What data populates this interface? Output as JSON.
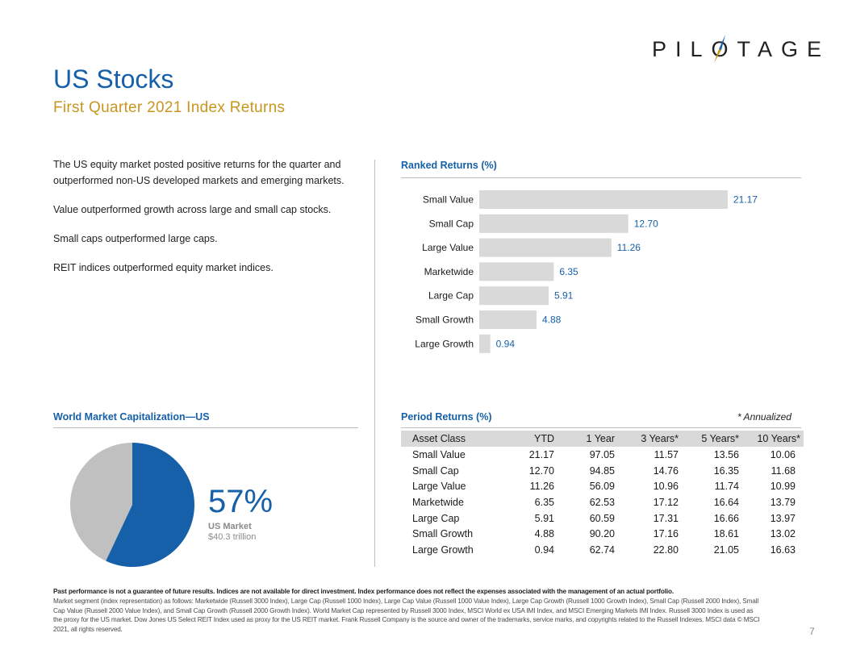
{
  "logo": {
    "text_before": "PIL",
    "o": "O",
    "text_after": "TAGE"
  },
  "title": "US Stocks",
  "subtitle": "First Quarter 2021 Index Returns",
  "bullets": [
    "The US equity market posted positive returns for the quarter and outperformed non-US developed markets and emerging markets.",
    "Value outperformed growth across large and small cap stocks.",
    "Small caps outperformed large caps.",
    "REIT indices outperformed equity market indices."
  ],
  "ranked_title": "Ranked Returns (%)",
  "chart_data": {
    "type": "bar",
    "orientation": "horizontal",
    "title": "Ranked Returns (%)",
    "categories": [
      "Small Value",
      "Small Cap",
      "Large Value",
      "Marketwide",
      "Large Cap",
      "Small Growth",
      "Large Growth"
    ],
    "values": [
      21.17,
      12.7,
      11.26,
      6.35,
      5.91,
      4.88,
      0.94
    ],
    "value_labels": [
      "21.17",
      "12.70",
      "11.26",
      "6.35",
      "5.91",
      "4.88",
      "0.94"
    ],
    "xlim": [
      0,
      22
    ],
    "bar_color": "#d9d9d9",
    "label_color": "#1560a8",
    "grid": false
  },
  "wmc": {
    "title": "World Market Capitalization—US",
    "us_share": 0.57,
    "us_color": "#1560a8",
    "rest_color": "#c0c0c0",
    "percent_text": "57%",
    "label": "US Market",
    "sublabel": "$40.3 trillion"
  },
  "period": {
    "title": "Period Returns (%)",
    "note": "* Annualized",
    "headers": [
      "Asset Class",
      "YTD",
      "1 Year",
      "3 Years*",
      "5 Years*",
      "10 Years*"
    ],
    "rows": [
      [
        "Small Value",
        "21.17",
        "97.05",
        "11.57",
        "13.56",
        "10.06"
      ],
      [
        "Small Cap",
        "12.70",
        "94.85",
        "14.76",
        "16.35",
        "11.68"
      ],
      [
        "Large Value",
        "11.26",
        "56.09",
        "10.96",
        "11.74",
        "10.99"
      ],
      [
        "Marketwide",
        "6.35",
        "62.53",
        "17.12",
        "16.64",
        "13.79"
      ],
      [
        "Large Cap",
        "5.91",
        "60.59",
        "17.31",
        "16.66",
        "13.97"
      ],
      [
        "Small Growth",
        "4.88",
        "90.20",
        "17.16",
        "18.61",
        "13.02"
      ],
      [
        "Large Growth",
        "0.94",
        "62.74",
        "22.80",
        "21.05",
        "16.63"
      ]
    ]
  },
  "disclaimer": {
    "bold": "Past performance is not a guarantee of future results. Indices are not available for direct investment. Index performance does not reflect the expenses associated with the management of an actual portfolio.",
    "text": "Market segment (index representation) as follows: Marketwide (Russell 3000 Index), Large Cap (Russell 1000 Index), Large Cap Value (Russell 1000 Value Index), Large Cap Growth (Russell 1000 Growth Index), Small Cap (Russell 2000 Index), Small Cap Value (Russell 2000 Value Index), and Small Cap Growth (Russell 2000 Growth Index). World Market Cap represented by Russell 3000 Index, MSCI World ex USA IMI Index, and MSCI Emerging Markets IMI Index. Russell 3000 Index is used as the proxy for the US market. Dow Jones US Select REIT Index used as proxy for the US REIT market. Frank Russell Company is the source and owner of the trademarks, service marks, and copyrights related to the Russell Indexes. MSCI data © MSCI 2021, all rights reserved."
  },
  "page_number": "7"
}
